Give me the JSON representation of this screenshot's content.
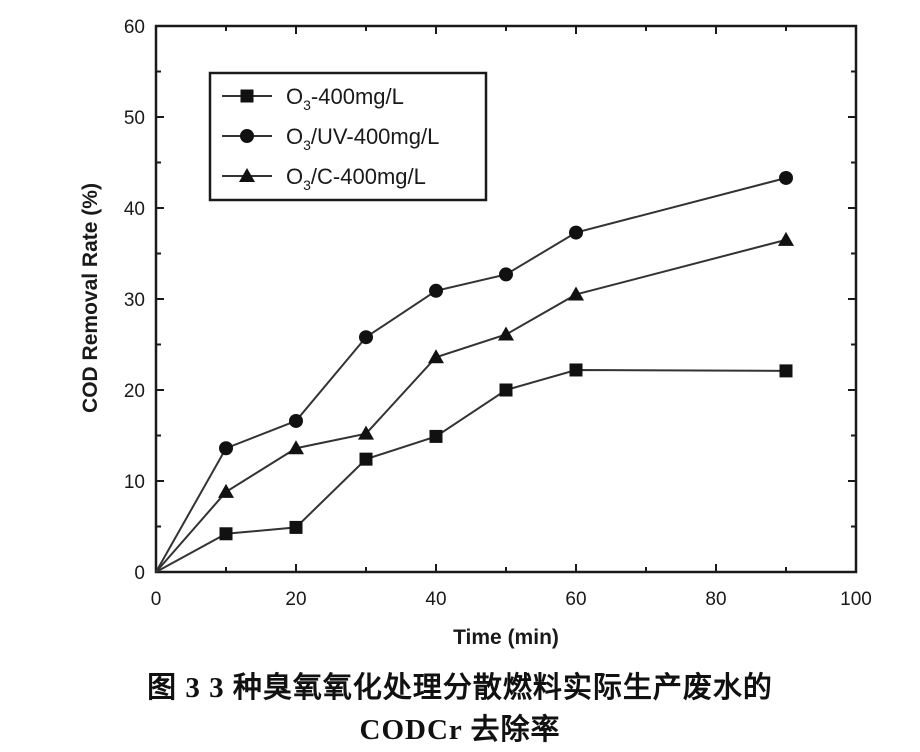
{
  "chart_data": {
    "type": "line",
    "xlabel": "Time (min)",
    "ylabel": "COD Removal Rate (%)",
    "xlim": [
      0,
      100
    ],
    "ylim": [
      0,
      60
    ],
    "x_ticks": [
      "0",
      "20",
      "40",
      "60",
      "80",
      "100"
    ],
    "y_ticks": [
      "0",
      "10",
      "20",
      "30",
      "40",
      "50",
      "60"
    ],
    "legend_position": "top-left",
    "grid": false,
    "series": [
      {
        "name_main": "O",
        "name_sub": "3",
        "name_rest": "-400mg/L",
        "marker": "square",
        "x": [
          0,
          10,
          20,
          30,
          40,
          50,
          60,
          90
        ],
        "y": [
          0,
          4.2,
          4.9,
          12.4,
          14.9,
          20.0,
          22.2,
          22.1
        ]
      },
      {
        "name_main": "O",
        "name_sub": "3",
        "name_rest": "/UV-400mg/L",
        "marker": "circle",
        "x": [
          0,
          10,
          20,
          30,
          40,
          50,
          60,
          90
        ],
        "y": [
          0,
          13.6,
          16.6,
          25.8,
          30.9,
          32.7,
          37.3,
          43.3
        ]
      },
      {
        "name_main": "O",
        "name_sub": "3",
        "name_rest": "/C-400mg/L",
        "marker": "triangle",
        "x": [
          0,
          10,
          20,
          30,
          40,
          50,
          60,
          90
        ],
        "y": [
          0,
          8.8,
          13.6,
          15.2,
          23.6,
          26.1,
          30.5,
          36.5
        ]
      }
    ]
  },
  "caption": {
    "line1": "图 3  3 种臭氧氧化处理分散燃料实际生产废水的",
    "line2": "CODCr 去除率"
  },
  "colors": {
    "axis": "#1a1a1a",
    "line": "#333333",
    "marker": "#111111"
  }
}
